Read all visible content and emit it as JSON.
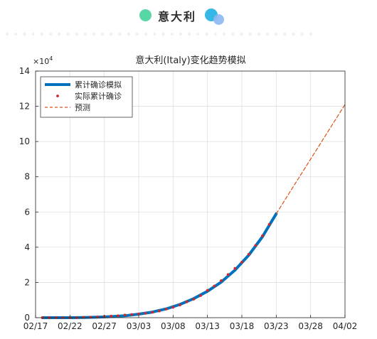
{
  "header": {
    "title": "意大利",
    "colors": {
      "left_dot": "#59d6a6",
      "right_dot_a": "#36b8e6",
      "right_dot_b": "#8cb8f2",
      "dots": "#eef0f6"
    }
  },
  "chart_data": {
    "type": "line",
    "title": "意大利(Italy)变化趋势模拟",
    "xlabel": "",
    "ylabel": "",
    "y_multiplier_label": "×10",
    "y_multiplier_exp": "4",
    "x_ticks": [
      "02/17",
      "02/22",
      "02/27",
      "03/03",
      "03/08",
      "03/13",
      "03/18",
      "03/23",
      "03/28",
      "04/02"
    ],
    "xlim": [
      "02/17",
      "04/02"
    ],
    "y_ticks": [
      "0",
      "2",
      "4",
      "6",
      "8",
      "10",
      "12",
      "14"
    ],
    "ylim": [
      0,
      14
    ],
    "grid": true,
    "legend": {
      "placement": "top-left",
      "entries": [
        "累计确诊模拟",
        "实际累计确诊",
        "预测"
      ]
    },
    "series": [
      {
        "name": "累计确诊模拟",
        "style": "line",
        "color": "#0072bd",
        "x": [
          "02/18",
          "02/20",
          "02/22",
          "02/24",
          "02/26",
          "02/28",
          "03/01",
          "03/03",
          "03/05",
          "03/07",
          "03/09",
          "03/11",
          "03/13",
          "03/15",
          "03/17",
          "03/19",
          "03/21",
          "03/23"
        ],
        "y": [
          0.0,
          0.0,
          0.0,
          0.01,
          0.03,
          0.06,
          0.11,
          0.2,
          0.32,
          0.5,
          0.75,
          1.08,
          1.5,
          2.02,
          2.7,
          3.55,
          4.6,
          5.9
        ]
      },
      {
        "name": "实际累计确诊",
        "style": "markers",
        "color": "#d62728",
        "x": [
          "02/18",
          "02/19",
          "02/20",
          "02/21",
          "02/22",
          "02/23",
          "02/24",
          "02/25",
          "02/26",
          "02/27",
          "02/28",
          "02/29",
          "03/01",
          "03/02",
          "03/03",
          "03/04",
          "03/05",
          "03/06",
          "03/07",
          "03/08",
          "03/09",
          "03/10",
          "03/11",
          "03/12",
          "03/13",
          "03/14",
          "03/15",
          "03/16",
          "03/17",
          "03/18",
          "03/19",
          "03/20",
          "03/21",
          "03/22"
        ],
        "y": [
          0.0,
          0.0,
          0.0,
          0.0,
          0.0,
          0.0,
          0.02,
          0.03,
          0.04,
          0.07,
          0.09,
          0.11,
          0.15,
          0.18,
          0.21,
          0.25,
          0.31,
          0.38,
          0.49,
          0.59,
          0.72,
          0.9,
          1.05,
          1.25,
          1.55,
          1.8,
          2.1,
          2.45,
          2.8,
          3.15,
          3.6,
          4.1,
          4.65,
          5.3
        ]
      },
      {
        "name": "预测",
        "style": "dashed",
        "color": "#d95319",
        "x": [
          "03/23",
          "04/02"
        ],
        "y": [
          5.9,
          12.1
        ]
      }
    ]
  }
}
